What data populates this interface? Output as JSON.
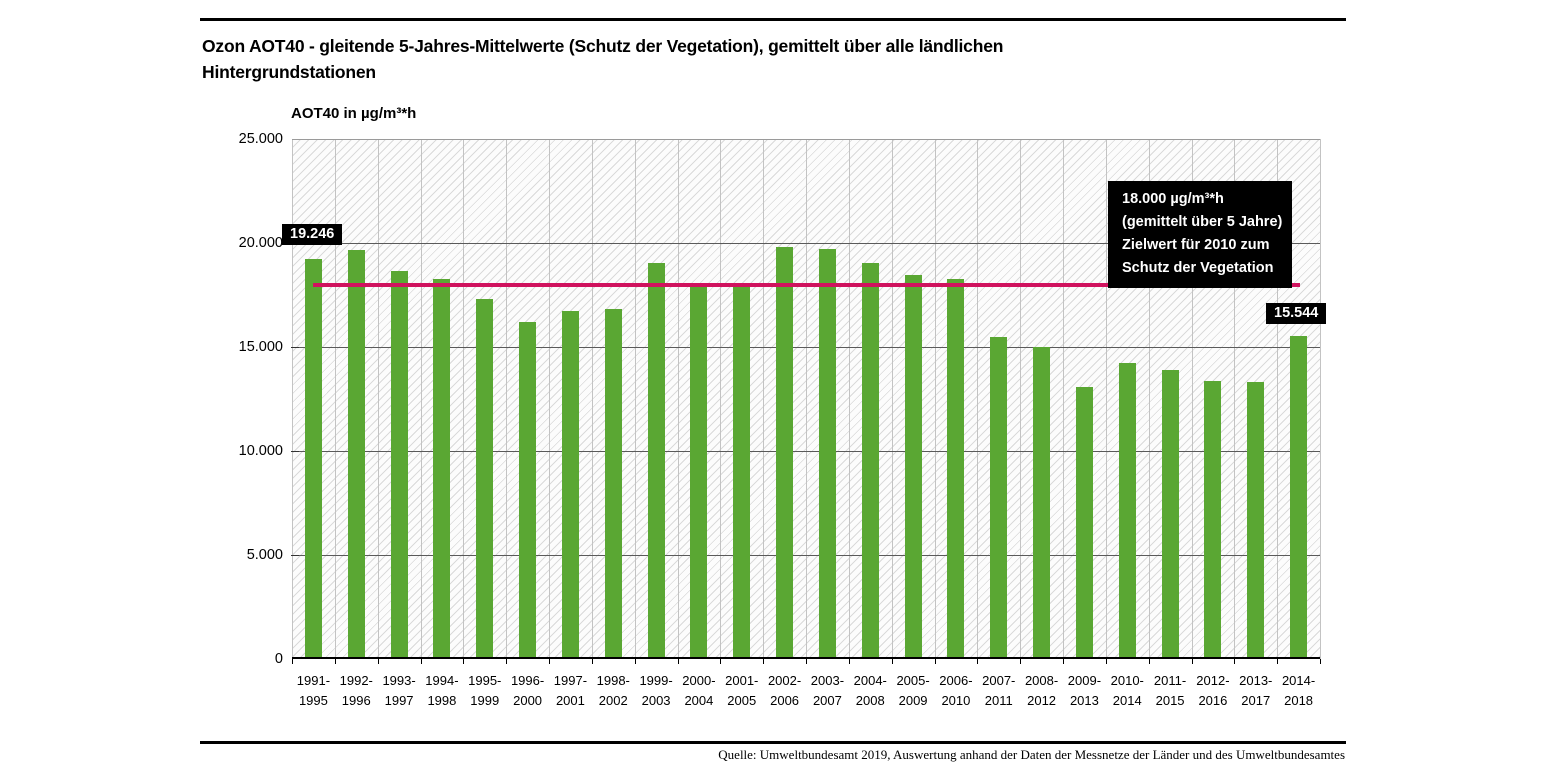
{
  "header": {
    "title_line1": "Ozon AOT40 - gleitende 5-Jahres-Mittelwerte (Schutz der Vegetation), gemittelt über alle ländlichen",
    "title_line2": "Hintergrundstationen"
  },
  "axis_title": "AOT40 in µg/m³*h",
  "annotation": {
    "lines": [
      "18.000 µg/m³*h",
      "(gemittelt über 5 Jahre)",
      "Zielwert für 2010 zum",
      "Schutz der Vegetation"
    ]
  },
  "value_labels": {
    "first_bar": "19.246",
    "last_bar": "15.544"
  },
  "source": "Quelle: Umweltbundesamt 2019, Auswertung anhand der Daten der Messnetze der Länder und des Umweltbundesamtes",
  "colors": {
    "bar": "#5aa733",
    "target_line": "#d0125e",
    "label_bg": "#000000",
    "label_fg": "#ffffff"
  },
  "chart_data": {
    "type": "bar",
    "title": "Ozon AOT40 - gleitende 5-Jahres-Mittelwerte (Schutz der Vegetation), gemittelt über alle ländlichen Hintergrundstationen",
    "ylabel": "AOT40 in µg/m³*h",
    "xlabel": "",
    "ylim": [
      0,
      25000
    ],
    "yticks": [
      0,
      5000,
      10000,
      15000,
      20000,
      25000
    ],
    "ytick_labels": [
      "0",
      "5.000",
      "10.000",
      "15.000",
      "20.000",
      "25.000"
    ],
    "grid": "hatched background, vertical category gridlines, horizontal gridlines every 5000",
    "legend_position": "none",
    "categories": [
      "1991-1995",
      "1992-1996",
      "1993-1997",
      "1994-1998",
      "1995-1999",
      "1996-2000",
      "1997-2001",
      "1998-2002",
      "1999-2003",
      "2000-2004",
      "2001-2005",
      "2002-2006",
      "2003-2007",
      "2004-2008",
      "2005-2009",
      "2006-2010",
      "2007-2011",
      "2008-2012",
      "2009-2013",
      "2010-2014",
      "2011-2015",
      "2012-2016",
      "2013-2017",
      "2014-2018"
    ],
    "values": [
      19246,
      19650,
      18660,
      18260,
      17300,
      16200,
      16730,
      16810,
      19020,
      17880,
      17880,
      19790,
      19690,
      19020,
      18470,
      18280,
      15480,
      14990,
      13060,
      14250,
      13890,
      13370,
      13310,
      15544
    ],
    "labeled_points": [
      {
        "category": "1991-1995",
        "label": "19.246",
        "value": 19246
      },
      {
        "category": "2014-2018",
        "label": "15.544",
        "value": 15544
      }
    ],
    "target_line": {
      "value": 18000,
      "label": "18.000 µg/m³*h (gemittelt über 5 Jahre) Zielwert für 2010 zum Schutz der Vegetation"
    }
  }
}
